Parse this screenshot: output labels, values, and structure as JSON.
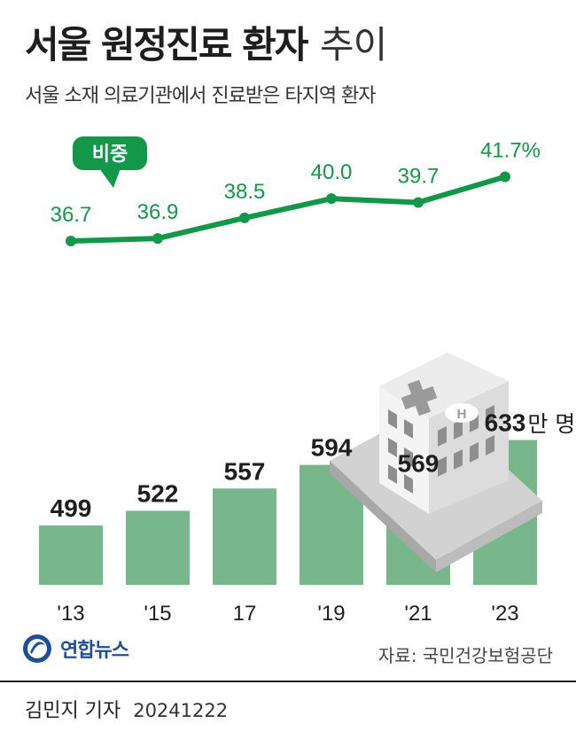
{
  "title_bold": "서울 원정진료 환자",
  "title_light": "추이",
  "subtitle": "서울 소재 의료기관에서 진료받은 타지역 환자",
  "legend_badge": "비중",
  "unit_label": "만 명",
  "logo_text": "연합뉴스",
  "source": "자료: 국민건강보험공단",
  "reporter": "김민지 기자",
  "date": "20241222",
  "colors": {
    "bar": "#78b68c",
    "line": "#139749",
    "text": "#1e1e1e"
  },
  "chart_data": [
    {
      "type": "bar",
      "categories": [
        "'13",
        "'15",
        "17",
        "'19",
        "'21",
        "'23"
      ],
      "values": [
        499,
        522,
        557,
        594,
        569,
        633
      ],
      "value_labels": [
        "499",
        "522",
        "557",
        "594",
        "569",
        "633"
      ],
      "unit": "만 명",
      "ylim": [
        0,
        700
      ]
    },
    {
      "type": "line",
      "name": "비중",
      "categories": [
        "'13",
        "'15",
        "17",
        "'19",
        "'21",
        "'23"
      ],
      "values": [
        36.7,
        36.9,
        38.5,
        40.0,
        39.7,
        41.7
      ],
      "value_labels": [
        "36.7",
        "36.9",
        "38.5",
        "40.0",
        "39.7",
        "41.7%"
      ],
      "unit": "%",
      "ylim": [
        30,
        45
      ]
    }
  ]
}
